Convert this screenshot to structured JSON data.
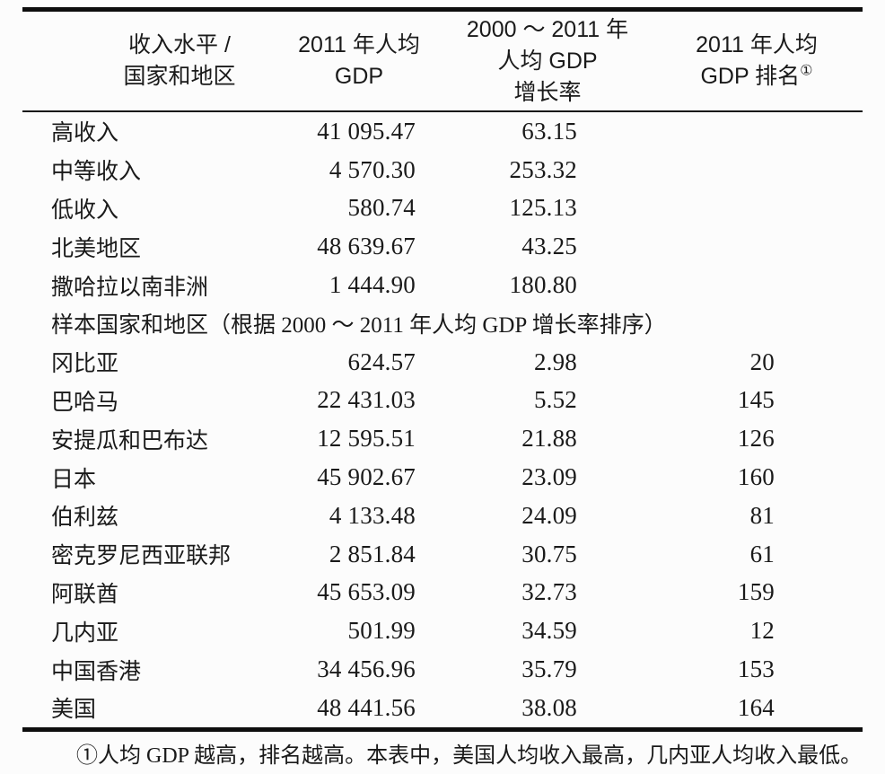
{
  "table": {
    "header": {
      "col1_line1": "收入水平 /",
      "col1_line2": "国家和地区",
      "col2_line1": "2011 年人均",
      "col2_line2": "GDP",
      "col3_line1": "2000 ～ 2011 年",
      "col3_line2": "人均 GDP",
      "col3_line3": "增长率",
      "col4_line1": "2011 年人均",
      "col4_line2": "GDP 排名",
      "col4_sup": "①"
    },
    "rows": [
      {
        "type": "data",
        "label": "高收入",
        "gdp": "41 095.47",
        "growth": "63.15",
        "rank": ""
      },
      {
        "type": "data",
        "label": "中等收入",
        "gdp": "4 570.30",
        "growth": "253.32",
        "rank": ""
      },
      {
        "type": "data",
        "label": "低收入",
        "gdp": "580.74",
        "growth": "125.13",
        "rank": ""
      },
      {
        "type": "data",
        "label": "北美地区",
        "gdp": "48 639.67",
        "growth": "43.25",
        "rank": ""
      },
      {
        "type": "data",
        "label": "撒哈拉以南非洲",
        "gdp": "1 444.90",
        "growth": "180.80",
        "rank": ""
      },
      {
        "type": "section",
        "label": "样本国家和地区（根据 2000 ～ 2011 年人均 GDP 增长率排序）"
      },
      {
        "type": "data",
        "label": "冈比亚",
        "gdp": "624.57",
        "growth": "2.98",
        "rank": "20"
      },
      {
        "type": "data",
        "label": "巴哈马",
        "gdp": "22 431.03",
        "growth": "5.52",
        "rank": "145"
      },
      {
        "type": "data",
        "label": "安提瓜和巴布达",
        "gdp": "12 595.51",
        "growth": "21.88",
        "rank": "126"
      },
      {
        "type": "data",
        "label": "日本",
        "gdp": "45 902.67",
        "growth": "23.09",
        "rank": "160"
      },
      {
        "type": "data",
        "label": "伯利兹",
        "gdp": "4 133.48",
        "growth": "24.09",
        "rank": "81"
      },
      {
        "type": "data",
        "label": "密克罗尼西亚联邦",
        "gdp": "2 851.84",
        "growth": "30.75",
        "rank": "61"
      },
      {
        "type": "data",
        "label": "阿联酋",
        "gdp": "45 653.09",
        "growth": "32.73",
        "rank": "159"
      },
      {
        "type": "data",
        "label": "几内亚",
        "gdp": "501.99",
        "growth": "34.59",
        "rank": "12"
      },
      {
        "type": "data",
        "label": "中国香港",
        "gdp": "34 456.96",
        "growth": "35.79",
        "rank": "153"
      },
      {
        "type": "data",
        "label": "美国",
        "gdp": "48 441.56",
        "growth": "38.08",
        "rank": "164"
      }
    ],
    "footnote": "①人均 GDP 越高，排名越高。本表中，美国人均收入最高，几内亚人均收入最低。"
  },
  "colors": {
    "background": "#fcfcfc",
    "text": "#1a1a1a",
    "rule": "#0e0e0e"
  }
}
